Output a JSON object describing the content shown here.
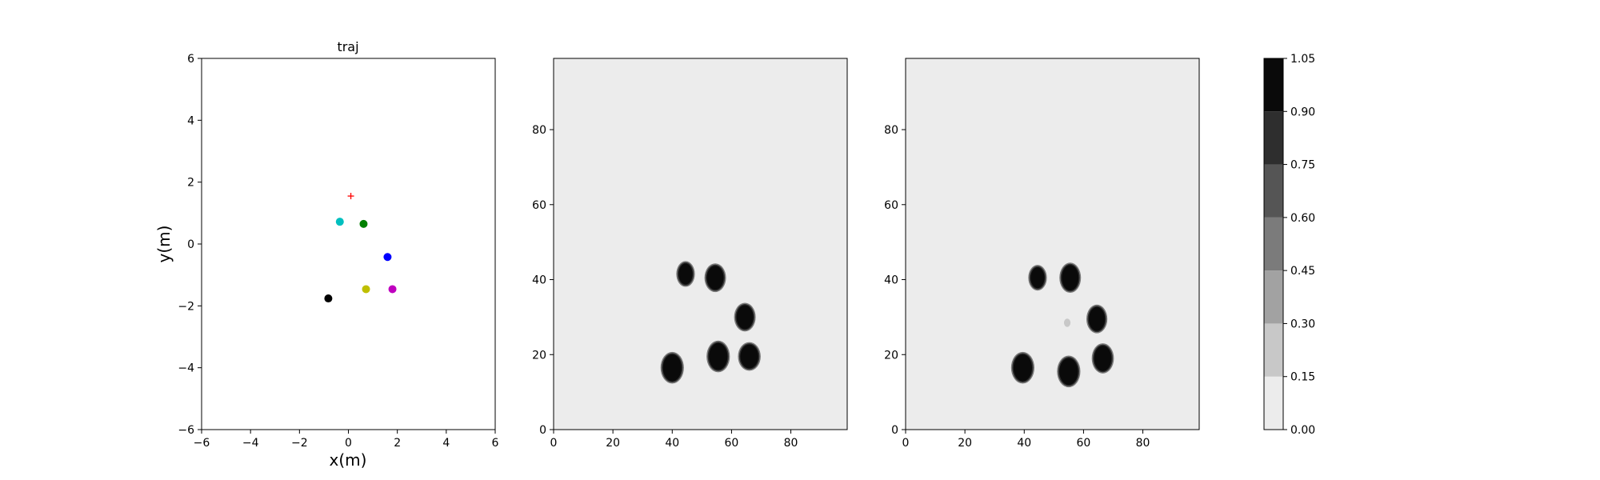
{
  "chart_data": [
    {
      "type": "scatter",
      "title": "traj",
      "xlabel": "x(m)",
      "ylabel": "y(m)",
      "xlim": [
        -6,
        6
      ],
      "ylim": [
        -6,
        6
      ],
      "xticks": [
        -6,
        -4,
        -2,
        0,
        2,
        4,
        6
      ],
      "yticks": [
        -6,
        -4,
        -2,
        0,
        2,
        4,
        6
      ],
      "grid": false,
      "points": [
        {
          "x": -0.35,
          "y": 0.72,
          "color": "#00bfbf",
          "marker": "circle"
        },
        {
          "x": 0.62,
          "y": 0.65,
          "color": "#008000",
          "marker": "circle"
        },
        {
          "x": 1.6,
          "y": -0.42,
          "color": "#0000ff",
          "marker": "circle"
        },
        {
          "x": -0.82,
          "y": -1.76,
          "color": "#000000",
          "marker": "circle"
        },
        {
          "x": 0.72,
          "y": -1.46,
          "color": "#bfbf00",
          "marker": "circle"
        },
        {
          "x": 1.8,
          "y": -1.46,
          "color": "#bf00bf",
          "marker": "circle"
        }
      ],
      "goal": {
        "x": 0.1,
        "y": 1.55,
        "color": "#ff0000",
        "marker": "plus"
      }
    },
    {
      "type": "heatmap",
      "title": "",
      "xlim": [
        0,
        99
      ],
      "ylim": [
        0,
        99
      ],
      "xticks": [
        0,
        20,
        40,
        60,
        80
      ],
      "yticks": [
        0,
        20,
        40,
        60,
        80
      ],
      "background_value": 0.0,
      "blobs": [
        {
          "x": 44.5,
          "y": 41.5,
          "rx": 2.6,
          "ry": 3.0,
          "value": 1.0
        },
        {
          "x": 54.5,
          "y": 40.5,
          "rx": 3.1,
          "ry": 3.4,
          "value": 1.0
        },
        {
          "x": 64.5,
          "y": 30.0,
          "rx": 3.1,
          "ry": 3.4,
          "value": 1.0
        },
        {
          "x": 40.0,
          "y": 16.5,
          "rx": 3.4,
          "ry": 3.8,
          "value": 1.0
        },
        {
          "x": 55.5,
          "y": 19.5,
          "rx": 3.4,
          "ry": 3.8,
          "value": 1.0
        },
        {
          "x": 66.0,
          "y": 19.5,
          "rx": 3.3,
          "ry": 3.4,
          "value": 1.0
        }
      ]
    },
    {
      "type": "heatmap",
      "title": "",
      "xlim": [
        0,
        99
      ],
      "ylim": [
        0,
        99
      ],
      "xticks": [
        0,
        20,
        40,
        60,
        80
      ],
      "yticks": [
        0,
        20,
        40,
        60,
        80
      ],
      "background_value": 0.0,
      "blobs": [
        {
          "x": 44.5,
          "y": 40.5,
          "rx": 2.6,
          "ry": 3.0,
          "value": 1.0
        },
        {
          "x": 55.5,
          "y": 40.5,
          "rx": 3.1,
          "ry": 3.6,
          "value": 1.0
        },
        {
          "x": 64.5,
          "y": 29.5,
          "rx": 3.0,
          "ry": 3.4,
          "value": 1.0
        },
        {
          "x": 39.5,
          "y": 16.5,
          "rx": 3.4,
          "ry": 3.8,
          "value": 1.0
        },
        {
          "x": 55.0,
          "y": 15.5,
          "rx": 3.4,
          "ry": 3.8,
          "value": 1.0
        },
        {
          "x": 66.5,
          "y": 19.0,
          "rx": 3.2,
          "ry": 3.6,
          "value": 1.0
        },
        {
          "x": 54.5,
          "y": 28.5,
          "rx": 1.1,
          "ry": 1.1,
          "value": 0.2
        }
      ]
    }
  ],
  "colorbar": {
    "levels": [
      0.0,
      0.15,
      0.3,
      0.45,
      0.6,
      0.75,
      0.9,
      1.05
    ],
    "tick_labels": [
      "0.00",
      "0.15",
      "0.30",
      "0.45",
      "0.60",
      "0.75",
      "0.90",
      "1.05"
    ],
    "colors": [
      "#ececec",
      "#c8c8c8",
      "#a2a2a2",
      "#7b7b7b",
      "#555555",
      "#2e2e2e",
      "#0a0a0a"
    ]
  }
}
